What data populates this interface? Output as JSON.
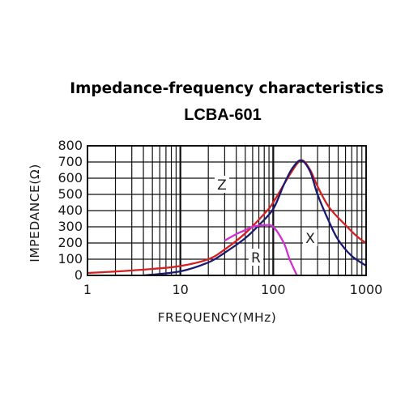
{
  "chart_data": {
    "type": "line",
    "title": "Impedance-frequency characteristics",
    "subtitle": "LCBA-601",
    "xlabel": "FREQUENCY(MHz)",
    "ylabel": "IMPEDANCE(Ω)",
    "xscale": "log",
    "xlim": [
      1,
      1000
    ],
    "ylim": [
      0,
      800
    ],
    "x_tick_labels": [
      "1",
      "10",
      "100",
      "1000"
    ],
    "x_tick_values": [
      1,
      10,
      100,
      1000
    ],
    "y_tick_labels": [
      "0",
      "100",
      "200",
      "300",
      "400",
      "500",
      "600",
      "700",
      "800"
    ],
    "y_tick_values": [
      0,
      100,
      200,
      300,
      400,
      500,
      600,
      700,
      800
    ],
    "grid": true,
    "series": [
      {
        "name": "Z",
        "color": "#d42020",
        "x": [
          1,
          2,
          5,
          10,
          20,
          30,
          50,
          80,
          100,
          150,
          200,
          250,
          300,
          400,
          600,
          800,
          1000
        ],
        "y": [
          15,
          24,
          40,
          58,
          100,
          160,
          260,
          380,
          450,
          620,
          710,
          650,
          550,
          420,
          310,
          240,
          200
        ]
      },
      {
        "name": "X",
        "color": "#1a1a6e",
        "x": [
          4,
          10,
          20,
          30,
          50,
          70,
          100,
          130,
          160,
          200,
          250,
          300,
          400,
          500,
          700,
          1000
        ],
        "y": [
          0,
          25,
          80,
          140,
          230,
          310,
          410,
          560,
          660,
          710,
          640,
          500,
          330,
          220,
          120,
          60
        ]
      },
      {
        "name": "R",
        "color": "#d030d0",
        "x": [
          30,
          40,
          50,
          60,
          80,
          100,
          130,
          150,
          180
        ],
        "y": [
          215,
          255,
          280,
          300,
          310,
          300,
          200,
          100,
          0
        ]
      }
    ]
  }
}
